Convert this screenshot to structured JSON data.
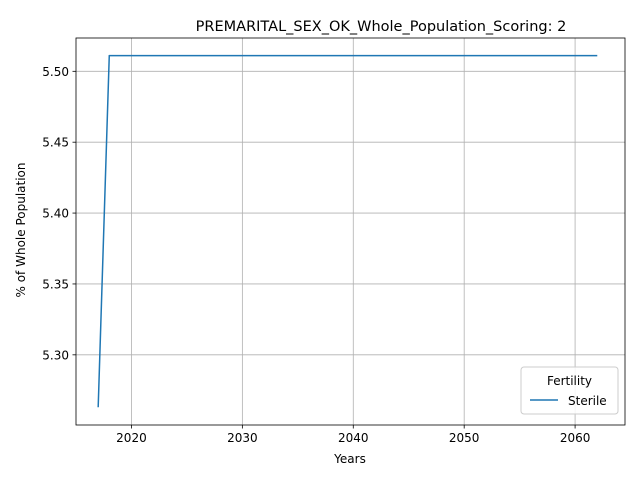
{
  "chart_data": {
    "type": "line",
    "title": "PREMARITAL_SEX_OK_Whole_Population_Scoring: 2",
    "xlabel": "Years",
    "ylabel": "% of Whole Population",
    "xlim": [
      2015,
      2064.5
    ],
    "ylim": [
      5.2505,
      5.5235
    ],
    "xticks": [
      2020,
      2030,
      2040,
      2050,
      2060
    ],
    "xtick_labels": [
      "2020",
      "2030",
      "2040",
      "2050",
      "2060"
    ],
    "yticks": [
      5.3,
      5.35,
      5.4,
      5.45,
      5.5
    ],
    "ytick_labels": [
      "5.30",
      "5.35",
      "5.40",
      "5.45",
      "5.50"
    ],
    "grid": true,
    "legend": {
      "title": "Fertility",
      "placement": "lower-right"
    },
    "series": [
      {
        "name": "Sterile",
        "color": "#1f77b4",
        "x": [
          2017,
          2018,
          2019,
          2020,
          2021,
          2022,
          2023,
          2024,
          2025,
          2026,
          2027,
          2028,
          2029,
          2030,
          2031,
          2032,
          2033,
          2034,
          2035,
          2036,
          2037,
          2038,
          2039,
          2040,
          2041,
          2042,
          2043,
          2044,
          2045,
          2046,
          2047,
          2048,
          2049,
          2050,
          2051,
          2052,
          2053,
          2054,
          2055,
          2056,
          2057,
          2058,
          2059,
          2060,
          2061,
          2062
        ],
        "values": [
          5.263,
          5.5111,
          5.5111,
          5.5111,
          5.5111,
          5.5111,
          5.5111,
          5.5111,
          5.5111,
          5.5111,
          5.5111,
          5.5111,
          5.5111,
          5.5111,
          5.5111,
          5.5111,
          5.5111,
          5.5111,
          5.5111,
          5.5111,
          5.5111,
          5.5111,
          5.5111,
          5.5111,
          5.5111,
          5.5111,
          5.5111,
          5.5111,
          5.5111,
          5.5111,
          5.5111,
          5.5111,
          5.5111,
          5.5111,
          5.5111,
          5.5111,
          5.5111,
          5.5111,
          5.5111,
          5.5111,
          5.5111,
          5.5111,
          5.5111,
          5.5111,
          5.5111,
          5.5111
        ]
      }
    ]
  }
}
